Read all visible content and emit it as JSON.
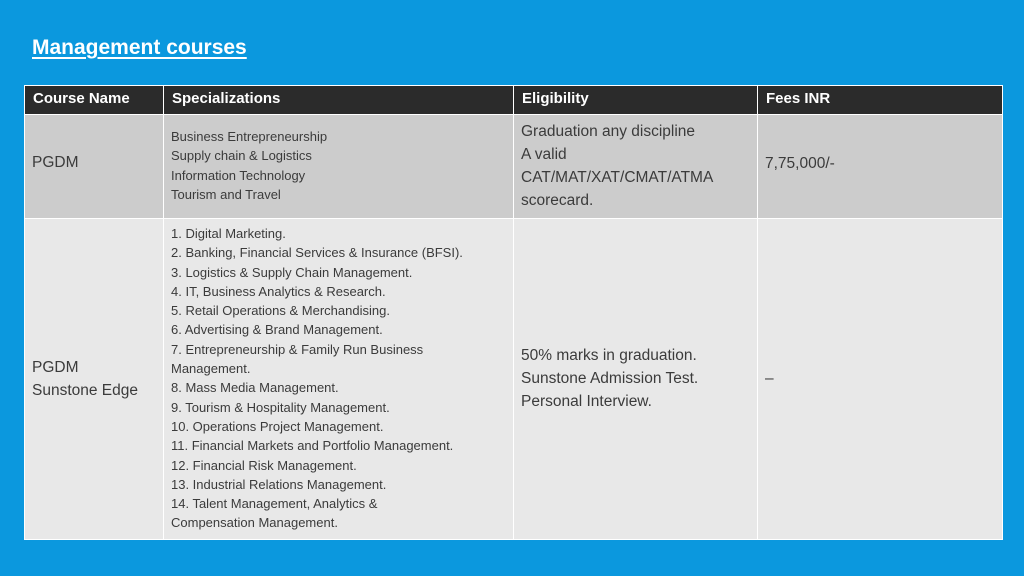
{
  "slide": {
    "title": "Management courses"
  },
  "table": {
    "headers": [
      "Course Name",
      "Specializations",
      "Eligibility",
      "Fees INR"
    ],
    "rows": [
      {
        "course_name": [
          "PGDM"
        ],
        "specializations": [
          "Business Entrepreneurship",
          "Supply chain & Logistics",
          "Information Technology",
          "Tourism and Travel"
        ],
        "eligibility": [
          "Graduation any discipline",
          "A valid",
          "CAT/MAT/XAT/CMAT/ATMA",
          "scorecard."
        ],
        "fees": "7,75,000/-"
      },
      {
        "course_name": [
          "PGDM",
          "Sunstone Edge"
        ],
        "specializations": [
          "1. Digital Marketing.",
          "2. Banking, Financial Services & Insurance (BFSI).",
          "3. Logistics & Supply Chain Management.",
          "4. IT, Business Analytics & Research.",
          "5. Retail Operations & Merchandising.",
          "6. Advertising & Brand Management.",
          "7. Entrepreneurship & Family Run Business",
          "Management.",
          "8. Mass Media Management.",
          "9. Tourism & Hospitality Management.",
          "10. Operations Project Management.",
          "11. Financial Markets and Portfolio Management.",
          "12. Financial Risk Management.",
          "13. Industrial Relations Management.",
          "14. Talent Management, Analytics &",
          "Compensation Management."
        ],
        "eligibility": [
          "50% marks in graduation.",
          "Sunstone Admission Test.",
          "Personal Interview."
        ],
        "fees": "–"
      }
    ]
  },
  "colors": {
    "background": "#0b98de",
    "header_bg": "#2b2b2b",
    "row1_bg": "#cccccc",
    "row2_bg": "#e8e8e8",
    "text": "#3b3b3b"
  }
}
